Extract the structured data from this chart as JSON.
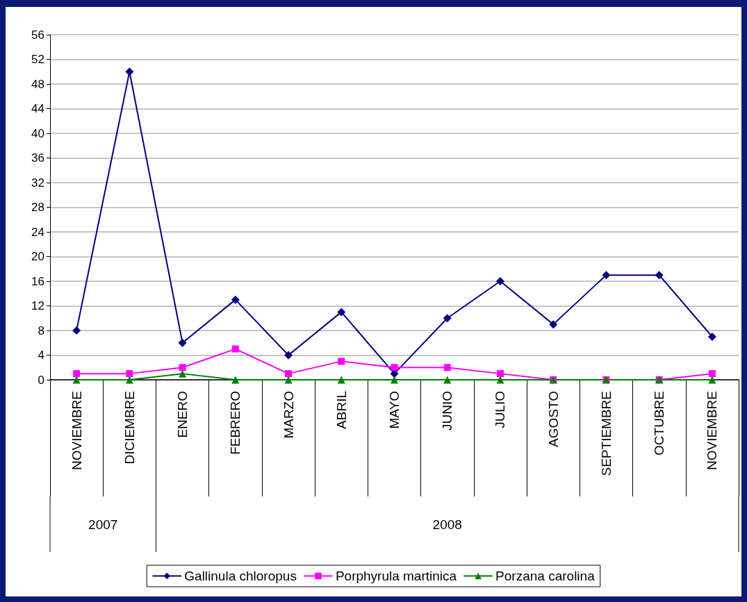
{
  "chart_data": {
    "type": "line",
    "categories": [
      "NOVIEMBRE",
      "DICIEMBRE",
      "ENERO",
      "FEBRERO",
      "MARZO",
      "ABRIL",
      "MAYO",
      "JUNIO",
      "JULIO",
      "AGOSTO",
      "SEPTIEMBRE",
      "OCTUBRE",
      "NOVIEMBRE"
    ],
    "series": [
      {
        "name": "Gallinula chloropus",
        "color": "#000080",
        "marker": "diamond",
        "values": [
          8,
          50,
          6,
          13,
          4,
          11,
          1,
          10,
          16,
          9,
          17,
          17,
          7
        ]
      },
      {
        "name": "Porphyrula martinica",
        "color": "#ff00ff",
        "marker": "square",
        "values": [
          1,
          1,
          2,
          5,
          1,
          3,
          2,
          2,
          1,
          0,
          0,
          0,
          1
        ]
      },
      {
        "name": "Porzana carolina",
        "color": "#008000",
        "marker": "triangle",
        "values": [
          0,
          0,
          1,
          0,
          0,
          0,
          0,
          0,
          0,
          0,
          0,
          0,
          0
        ]
      }
    ],
    "ylim": [
      0,
      56
    ],
    "yticks": [
      0,
      4,
      8,
      12,
      16,
      20,
      24,
      28,
      32,
      36,
      40,
      44,
      48,
      52,
      56
    ],
    "grid": "y",
    "legend": "bottom",
    "line_style": "solid",
    "annotations": [
      "2007",
      "2008"
    ]
  }
}
